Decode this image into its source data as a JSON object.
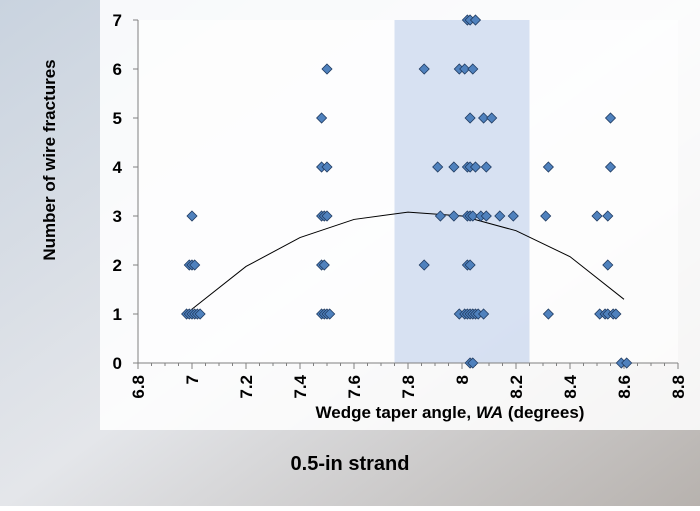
{
  "chart_data": {
    "type": "scatter",
    "title": "0.5-in strand",
    "xlabel": [
      "Wedge taper angle, ",
      "WA",
      " (degrees)"
    ],
    "ylabel": "Number of wire fractures",
    "xlim": [
      6.8,
      8.8
    ],
    "ylim": [
      0,
      7
    ],
    "xticks": [
      6.8,
      7.0,
      7.2,
      7.4,
      7.6,
      7.8,
      8.0,
      8.2,
      8.4,
      8.6,
      8.8
    ],
    "yticks": [
      0,
      1,
      2,
      3,
      4,
      5,
      6,
      7
    ],
    "shaded_range": [
      7.75,
      8.25
    ],
    "color": "#4f81bd",
    "x": [
      6.98,
      6.99,
      7.0,
      7.01,
      7.02,
      7.03,
      6.99,
      7.0,
      7.01,
      7.0,
      7.48,
      7.49,
      7.5,
      7.51,
      7.48,
      7.49,
      7.48,
      7.49,
      7.5,
      7.48,
      7.5,
      7.48,
      7.5,
      8.03,
      8.04,
      7.99,
      8.01,
      8.02,
      8.03,
      8.04,
      8.05,
      8.06,
      8.08,
      7.86,
      8.02,
      8.03,
      7.92,
      7.97,
      8.02,
      8.03,
      8.04,
      8.07,
      8.09,
      8.14,
      8.19,
      7.91,
      7.97,
      8.02,
      8.03,
      8.05,
      8.09,
      8.03,
      8.08,
      8.11,
      7.86,
      7.99,
      8.01,
      8.04,
      8.02,
      8.03,
      8.05,
      8.59,
      8.61,
      8.32,
      8.51,
      8.53,
      8.54,
      8.56,
      8.57,
      8.54,
      8.31,
      8.5,
      8.54,
      8.32,
      8.55,
      8.55
    ],
    "values": [
      1,
      1,
      1,
      1,
      1,
      1,
      2,
      2,
      2,
      3,
      1,
      1,
      1,
      1,
      2,
      2,
      3,
      3,
      3,
      4,
      4,
      5,
      6,
      0,
      0,
      1,
      1,
      1,
      1,
      1,
      1,
      1,
      1,
      2,
      2,
      2,
      3,
      3,
      3,
      3,
      3,
      3,
      3,
      3,
      3,
      4,
      4,
      4,
      4,
      4,
      4,
      5,
      5,
      5,
      6,
      6,
      6,
      6,
      7,
      7,
      7,
      0,
      0,
      1,
      1,
      1,
      1,
      1,
      1,
      2,
      3,
      3,
      3,
      4,
      4,
      5
    ],
    "trend": {
      "x": [
        7.0,
        7.2,
        7.4,
        7.6,
        7.8,
        8.0,
        8.2,
        8.4,
        8.6
      ],
      "values": [
        1.1,
        1.97,
        2.56,
        2.93,
        3.08,
        3.0,
        2.7,
        2.17,
        1.3
      ]
    }
  }
}
